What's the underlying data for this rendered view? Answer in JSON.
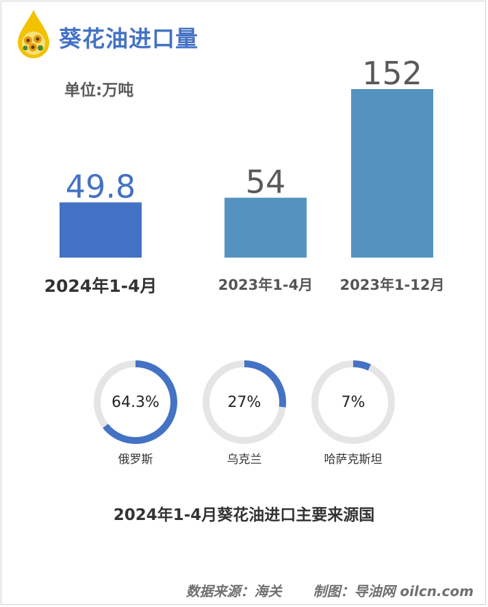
{
  "header": {
    "title": "葵花油进口量",
    "unit": "单位:万吨"
  },
  "chart_data": [
    {
      "type": "bar",
      "categories": [
        "2024年1-4月",
        "2023年1-4月",
        "2023年1-12月"
      ],
      "values": [
        49.8,
        54,
        152
      ],
      "value_labels": [
        "49.8",
        "54",
        "152"
      ],
      "ylim": [
        0,
        152
      ],
      "grid": false,
      "colors": [
        "#4472c4",
        "#5493bf",
        "#5493bf"
      ],
      "value_label_colors": [
        "#4472c4",
        "#595959",
        "#595959"
      ]
    },
    {
      "type": "pie",
      "title": "2024年1-4月葵花油进口主要来源国",
      "slices": [
        {
          "label": "俄罗斯",
          "value": 64.3,
          "value_label": "64.3%"
        },
        {
          "label": "乌克兰",
          "value": 27,
          "value_label": "27%"
        },
        {
          "label": "哈萨克斯坦",
          "value": 7,
          "value_label": "7%"
        }
      ],
      "ring_color": "#4472c4",
      "track_color": "#e5e5e5"
    }
  ],
  "footer": {
    "source": "数据来源：海关",
    "credit": "制图：导油网 oilcn.com"
  }
}
